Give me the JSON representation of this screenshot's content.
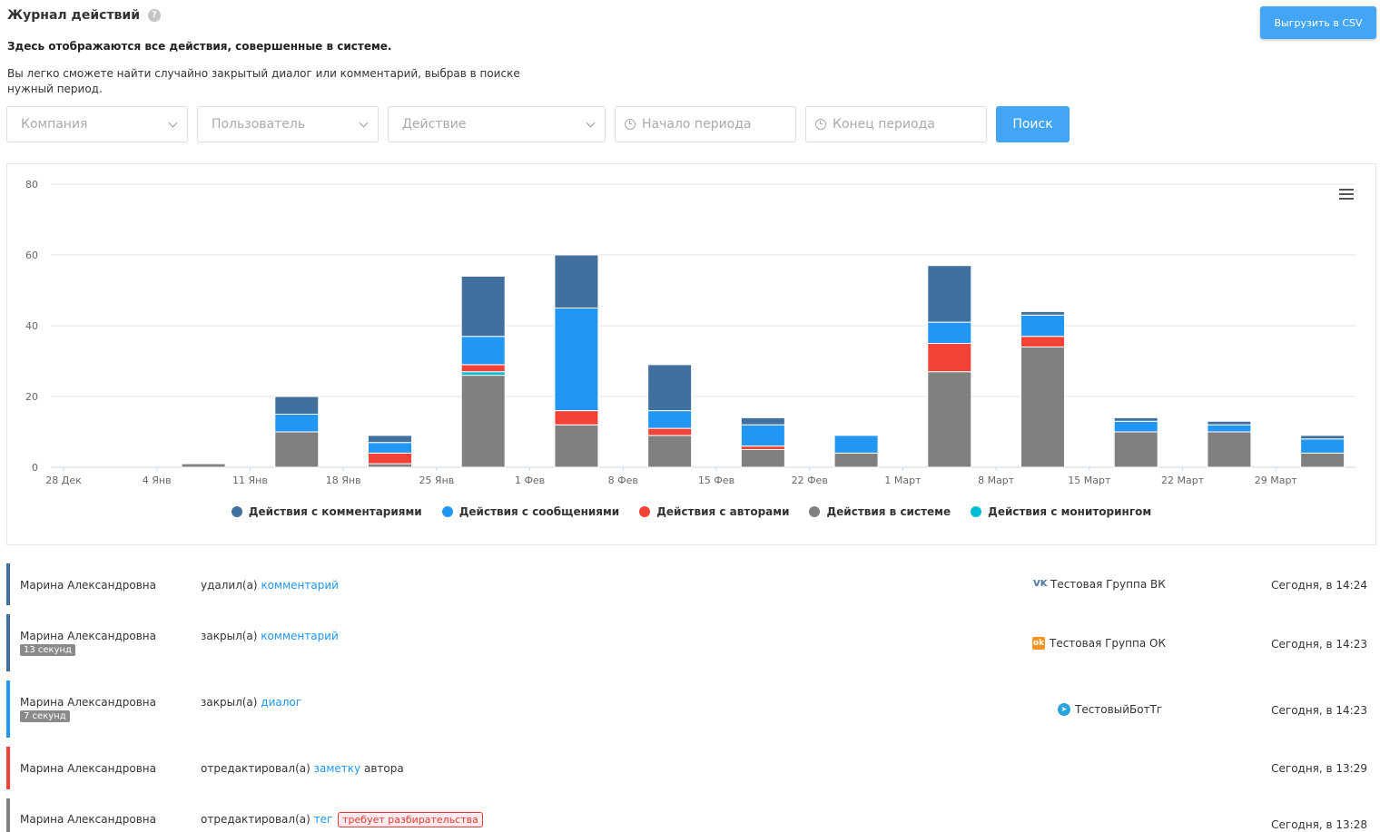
{
  "header": {
    "title": "Журнал действий",
    "help_icon": "?",
    "subtitle": "Здесь отображаются все действия, совершенные в системе.",
    "description": "Вы легко сможете найти случайно закрытый диалог или комментарий, выбрав в поиске нужный период.",
    "csv_button": "Выгрузить в CSV"
  },
  "filters": {
    "company": "Компания",
    "user": "Пользователь",
    "action": "Действие",
    "period_start": "Начало периода",
    "period_end": "Конец периода",
    "search_button": "Поиск"
  },
  "chart_data": {
    "type": "bar",
    "stacked": true,
    "title": "",
    "xlabel": "",
    "ylabel": "",
    "ylim": [
      0,
      80
    ],
    "yticks": [
      0,
      20,
      40,
      60,
      80
    ],
    "xticks": [
      "28 Дек",
      "4 Янв",
      "11 Янв",
      "18 Янв",
      "25 Янв",
      "1 Фев",
      "8 Фев",
      "15 Фев",
      "22 Фев",
      "1 Март",
      "8 Март",
      "15 Март",
      "22 Март",
      "29 Март"
    ],
    "categories": [
      "28 Дек",
      "4 Янв",
      "11 Янв",
      "18 Янв",
      "25 Янв",
      "1 Фев",
      "8 Фев",
      "15 Фев",
      "22 Фев",
      "1 Март",
      "8 Март",
      "15 Март",
      "22 Март",
      "29 Март"
    ],
    "grid": true,
    "legend_position": "bottom",
    "series": [
      {
        "name": "Действия в системе",
        "color": "#808080",
        "values": [
          0,
          1,
          10,
          1,
          26,
          12,
          9,
          5,
          4,
          27,
          34,
          10,
          10,
          4
        ]
      },
      {
        "name": "Действия с мониторингом",
        "color": "#00bcd4",
        "values": [
          0,
          0,
          0,
          0,
          1,
          0,
          0,
          0,
          0,
          0,
          0,
          0,
          0,
          0
        ]
      },
      {
        "name": "Действия с авторами",
        "color": "#f44336",
        "values": [
          0,
          0,
          0,
          3,
          2,
          4,
          2,
          1,
          0,
          8,
          3,
          0,
          0,
          0
        ]
      },
      {
        "name": "Действия с сообщениями",
        "color": "#2196f3",
        "values": [
          0,
          0,
          5,
          3,
          8,
          29,
          5,
          6,
          5,
          6,
          6,
          3,
          2,
          4
        ]
      },
      {
        "name": "Действия с комментариями",
        "color": "#41709e",
        "values": [
          0,
          0,
          5,
          2,
          17,
          15,
          13,
          2,
          0,
          16,
          1,
          1,
          1,
          1
        ]
      }
    ]
  },
  "legend": [
    {
      "label": "Действия с комментариями",
      "color": "#41709e"
    },
    {
      "label": "Действия с сообщениями",
      "color": "#2196f3"
    },
    {
      "label": "Действия с авторами",
      "color": "#f44336"
    },
    {
      "label": "Действия в системе",
      "color": "#808080"
    },
    {
      "label": "Действия с мониторингом",
      "color": "#00bcd4"
    }
  ],
  "log": [
    {
      "user": "Марина Александровна",
      "verb": "удалил(а)",
      "link": "комментарий",
      "source": "Тестовая Группа ВК",
      "time": "Сегодня, в 14:24",
      "color": "#41709e"
    },
    {
      "user": "Марина Александровна",
      "badge": "13 секунд",
      "verb": "закрыл(а)",
      "link": "комментарий",
      "source": "Тестовая Группа ОК",
      "time": "Сегодня, в 14:23",
      "color": "#41709e"
    },
    {
      "user": "Марина Александровна",
      "badge": "7 секунд",
      "verb": "закрыл(а)",
      "link": "диалог",
      "source": "ТестовыйБотТг",
      "time": "Сегодня, в 14:23",
      "color": "#2196f3"
    },
    {
      "user": "Марина Александровна",
      "verb": "отредактировал(а)",
      "link": "заметку",
      "suffix": "автора",
      "time": "Сегодня, в 13:29",
      "color": "#f44336"
    },
    {
      "user": "Марина Александровна",
      "verb": "отредактировал(а)",
      "link": "тег",
      "tag": "требует разбирательства",
      "time": "Сегодня, в 13:28",
      "color": "#808080"
    }
  ],
  "icons": {
    "vk": "vk-icon",
    "ok": "ok-icon",
    "telegram": "telegram-icon",
    "menu": "hamburger-menu-icon",
    "clock": "clock-icon",
    "chevron": "chevron-down-icon"
  }
}
